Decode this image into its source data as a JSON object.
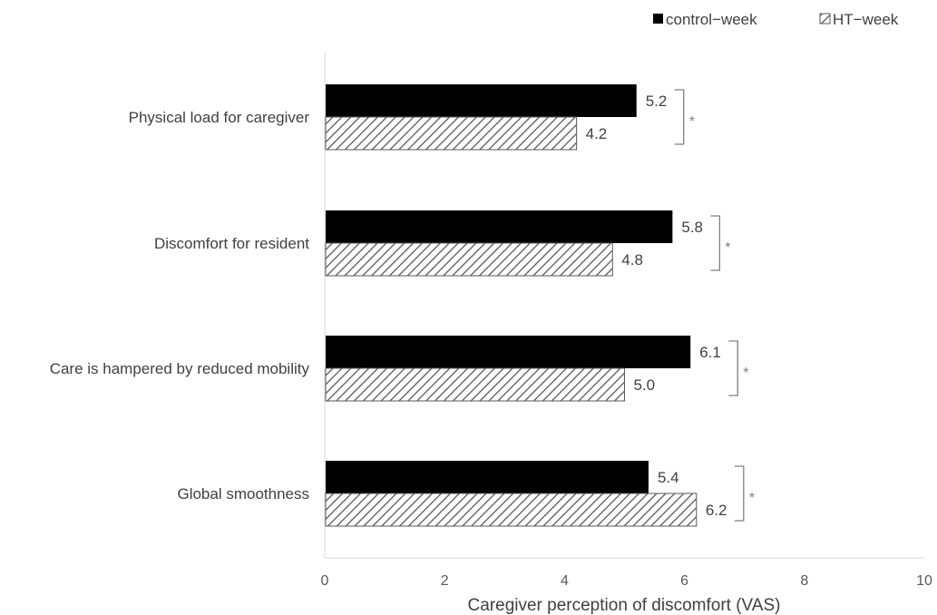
{
  "chart_data": {
    "type": "bar",
    "orientation": "horizontal",
    "categories": [
      "Physical load for caregiver",
      "Discomfort for resident",
      "Care is hampered by reduced mobility",
      "Global smoothness"
    ],
    "series": [
      {
        "name": "control−week",
        "values": [
          5.2,
          5.8,
          6.1,
          5.4
        ],
        "color": "#000000",
        "pattern": "solid"
      },
      {
        "name": "HT−week",
        "values": [
          4.2,
          4.8,
          5.0,
          6.2
        ],
        "color": "#595959",
        "pattern": "diagonal-hatch"
      }
    ],
    "data_labels": [
      [
        "5.2",
        "5.8",
        "6.1",
        "5.4"
      ],
      [
        "4.2",
        "4.8",
        "5.0",
        "6.2"
      ]
    ],
    "significance": [
      "*",
      "*",
      "*",
      "*"
    ],
    "xlabel": "Caregiver perception of discomfort (VAS)",
    "ylabel": "",
    "xlim": [
      0,
      10
    ],
    "xticks": [
      "0",
      "2",
      "4",
      "6",
      "8",
      "10"
    ],
    "grid": false,
    "legend": "top-right"
  }
}
